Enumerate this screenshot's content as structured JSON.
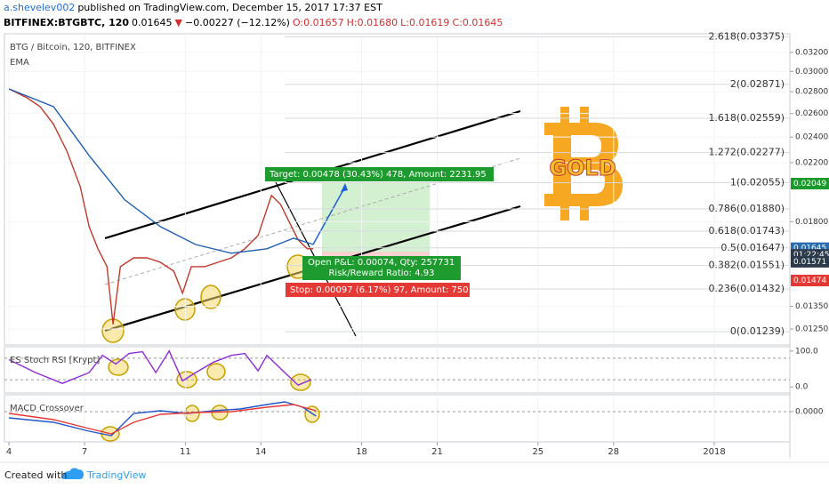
{
  "header": {
    "author": "a.shevelev002",
    "published": "published on TradingView.com, December 15, 2017 17:37 EST",
    "symbol": "BITFINEX:BTGBTC, 120",
    "last": "0.01645",
    "direction": "▼",
    "change": "−0.00227 (−12.12%)",
    "open": "O:0.01657",
    "high": "H:0.01680",
    "low": "L:0.01619",
    "close": "C:0.01645"
  },
  "chart_data": [
    {
      "type": "line",
      "title": "BTG / Bitcoin, 120, BITFINEX",
      "indicator": "EMA",
      "log_scale": true,
      "grid": true,
      "xlim": [
        3.82,
        35.0
      ],
      "xticks": [
        4,
        7,
        11,
        14,
        18,
        21,
        25,
        28,
        {
          "value": 32,
          "label": "2018"
        }
      ],
      "ylim": [
        0.01184,
        0.03409
      ],
      "yticks": [
        {
          "value": 0.032,
          "label": "0.03200"
        },
        {
          "value": 0.03,
          "label": "0.03000"
        },
        {
          "value": 0.028,
          "label": "0.02800"
        },
        {
          "value": 0.026,
          "label": "0.02600"
        },
        {
          "value": 0.024,
          "label": "0.02400"
        },
        {
          "value": 0.022,
          "label": "0.02200"
        },
        {
          "value": 0.018,
          "label": "0.01800"
        },
        {
          "value": 0.0135,
          "label": "0.01350"
        },
        {
          "value": 0.0125,
          "label": "0.01250"
        }
      ],
      "series": [
        {
          "color": "#c0392b",
          "x": [
            4.0,
            4.71,
            5.24,
            5.77,
            6.3,
            6.83,
            7.18,
            7.53,
            7.89,
            8.13,
            8.42,
            8.95,
            9.48,
            10.01,
            10.54,
            10.89,
            11.24,
            11.77,
            12.3,
            12.83,
            13.36,
            13.89,
            14.42,
            14.78,
            15.13,
            15.48,
            15.84,
            16.08
          ],
          "values": [
            0.02827,
            0.02743,
            0.02661,
            0.02506,
            0.02288,
            0.02028,
            0.0177,
            0.01642,
            0.01545,
            0.0127,
            0.01545,
            0.01592,
            0.01592,
            0.01568,
            0.01522,
            0.01412,
            0.01545,
            0.01545,
            0.01568,
            0.01592,
            0.01642,
            0.01718,
            0.01968,
            0.01909,
            0.01797,
            0.01692,
            0.01642,
            0.01642
          ]
        },
        {
          "color": "#1e5fb4",
          "x": [
            4.0,
            5.77,
            7.18,
            8.6,
            10.01,
            11.41,
            12.83,
            14.24,
            15.3,
            16.08
          ],
          "values": [
            0.02827,
            0.02661,
            0.02254,
            0.01938,
            0.0177,
            0.01666,
            0.01617,
            0.01642,
            0.01702,
            0.01666
          ]
        }
      ],
      "fib_levels": [
        {
          "value": 0.03375,
          "label": "2.618(0.03375)"
        },
        {
          "value": 0.02871,
          "label": "2(0.02871)"
        },
        {
          "value": 0.02559,
          "label": "1.618(0.02559)"
        },
        {
          "value": 0.02277,
          "label": "1.272(0.02277)"
        },
        {
          "value": 0.02055,
          "label": "1(0.02055)"
        },
        {
          "value": 0.0188,
          "label": "0.786(0.01880)"
        },
        {
          "value": 0.01743,
          "label": "0.618(0.01743)"
        },
        {
          "value": 0.01647,
          "label": "0.5(0.01647)"
        },
        {
          "value": 0.01551,
          "label": "0.382(0.01551)"
        },
        {
          "value": 0.01432,
          "label": "0.236(0.01432)"
        },
        {
          "value": 0.01239,
          "label": "0(0.01239)"
        }
      ],
      "price_labels": [
        {
          "value": 0.02049,
          "label": "0.02049",
          "color": "#1a9a2a"
        },
        {
          "value": 0.01645,
          "label": "0.01645",
          "color": "#2b6cb0"
        },
        {
          "value": 0.01608,
          "label": "01:22:45",
          "color": "#2b3a4a"
        },
        {
          "value": 0.01571,
          "label": "0.01571",
          "color": "#2b3a4a"
        },
        {
          "value": 0.01474,
          "label": "0.01474",
          "color": "#e53935"
        }
      ],
      "annotations": {
        "target": "Target: 0.00478 (30.43%) 478, Amount: 2231.95",
        "open_pnl": "Open P&L: 0.00074, Qty: 257731",
        "risk_reward": "Risk/Reward Ratio: 4.93",
        "stop": "Stop: 0.00097 (6.17%) 97, Amount: 750",
        "logo": "GOLD"
      }
    },
    {
      "type": "line",
      "title": "ES Stoch RSI [Krypt]",
      "ylim": [
        -16.7,
        111.9
      ],
      "yticks": [
        {
          "value": 100,
          "label": "100.0"
        },
        {
          "value": 0,
          "label": "0.0"
        }
      ],
      "bands": [
        80,
        20
      ],
      "series": [
        {
          "color": "#8e2bd6",
          "x": [
            4.0,
            5.06,
            6.12,
            7.18,
            7.71,
            8.24,
            8.77,
            9.3,
            9.83,
            10.36,
            10.89,
            11.41,
            12.12,
            12.83,
            13.36,
            13.89,
            14.24,
            14.95,
            15.48,
            16.01
          ],
          "values": [
            76,
            40,
            10,
            40,
            88,
            64,
            93,
            98,
            40,
            100,
            17,
            40,
            69,
            88,
            93,
            45,
            88,
            40,
            5,
            21
          ]
        }
      ]
    },
    {
      "type": "line",
      "title": "MACD Crossover",
      "ylim": [
        -0.0017,
        0.00095
      ],
      "yticks": [
        {
          "value": 0,
          "label": "0.0000"
        }
      ],
      "series": [
        {
          "color": "#2255cc",
          "x": [
            4.0,
            5.77,
            7.18,
            8.06,
            8.95,
            10.01,
            11.07,
            12.12,
            13.18,
            14.24,
            14.95,
            15.66,
            16.19
          ],
          "values": [
            -0.00035,
            -0.0006,
            -0.0011,
            -0.00135,
            -0.0001,
            5e-05,
            -0.0001,
            5e-05,
            0.00015,
            0.0004,
            0.00055,
            0.00025,
            -0.00025
          ]
        },
        {
          "color": "#e53935",
          "x": [
            4.0,
            5.77,
            7.18,
            8.06,
            8.95,
            10.01,
            11.41,
            12.83,
            14.24,
            15.3,
            16.19
          ],
          "values": [
            -0.0001,
            -0.00045,
            -0.00095,
            -0.00125,
            -0.0006,
            -0.00015,
            -5e-05,
            0,
            0.00025,
            0.0004,
            5e-05
          ]
        }
      ]
    }
  ],
  "footer": {
    "created": "Created with",
    "brand": "TradingView"
  }
}
